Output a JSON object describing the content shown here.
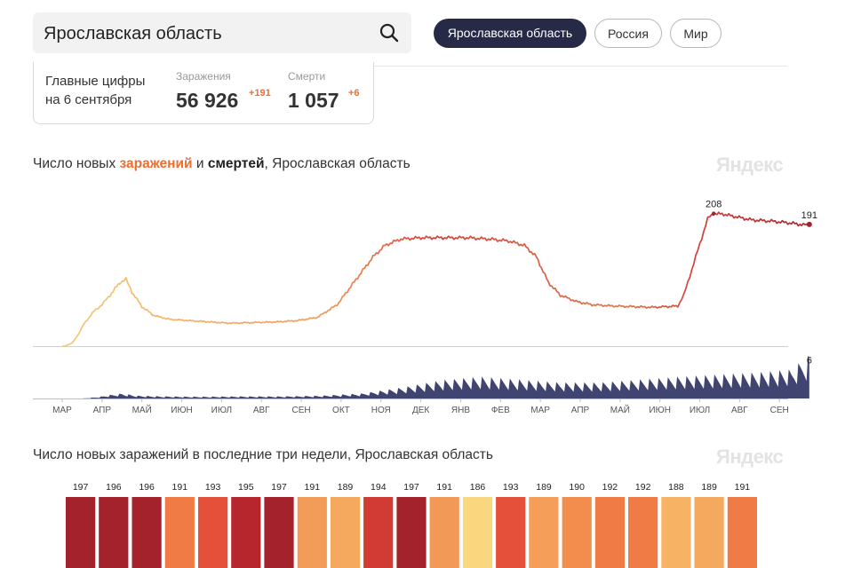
{
  "search": {
    "value": "Ярославская область"
  },
  "region_tabs": [
    "Ярославская область",
    "Россия",
    "Мир"
  ],
  "summary": {
    "line1": "Главные цифры",
    "line2": "на 6 сентября",
    "infections_label": "Заражения",
    "infections_value": "56 926",
    "infections_delta": "+191",
    "deaths_label": "Смерти",
    "deaths_value": "1 057",
    "deaths_delta": "+6"
  },
  "brand": "Яндекс",
  "chart_data": [
    {
      "type": "line",
      "title_parts": [
        "Число новых ",
        "заражений",
        " и ",
        "смертей",
        ", Ярославская область"
      ],
      "xlabel": "",
      "ylabel": "",
      "x_ticks": [
        "МАР",
        "АПР",
        "МАЙ",
        "ИЮН",
        "ИЮЛ",
        "АВГ",
        "СЕН",
        "ОКТ",
        "НОЯ",
        "ДЕК",
        "ЯНВ",
        "ФЕВ",
        "МАР",
        "АПР",
        "МАЙ",
        "ИЮН",
        "ИЮЛ",
        "АВГ",
        "СЕН"
      ],
      "annotations": [
        {
          "label": "208",
          "value": 208
        },
        {
          "label": "191",
          "value": 191
        },
        {
          "label": "6",
          "value": 6
        }
      ],
      "infections": {
        "ylim": [
          0,
          220
        ],
        "points": [
          [
            0,
            0
          ],
          [
            0.07,
            0
          ],
          [
            0.15,
            2
          ],
          [
            0.25,
            5
          ],
          [
            0.4,
            18
          ],
          [
            0.55,
            35
          ],
          [
            0.8,
            55
          ],
          [
            1.0,
            65
          ],
          [
            1.2,
            80
          ],
          [
            1.45,
            100
          ],
          [
            1.6,
            105
          ],
          [
            1.75,
            85
          ],
          [
            2.0,
            62
          ],
          [
            2.3,
            48
          ],
          [
            2.7,
            42
          ],
          [
            3.2,
            40
          ],
          [
            3.7,
            38
          ],
          [
            4.2,
            36
          ],
          [
            4.8,
            37
          ],
          [
            5.4,
            38
          ],
          [
            5.9,
            40
          ],
          [
            6.4,
            45
          ],
          [
            6.9,
            65
          ],
          [
            7.2,
            90
          ],
          [
            7.5,
            115
          ],
          [
            7.8,
            140
          ],
          [
            8.1,
            158
          ],
          [
            8.5,
            168
          ],
          [
            9.0,
            170
          ],
          [
            9.6,
            170
          ],
          [
            10.2,
            170
          ],
          [
            10.7,
            168
          ],
          [
            11.2,
            165
          ],
          [
            11.6,
            158
          ],
          [
            11.9,
            140
          ],
          [
            12.2,
            100
          ],
          [
            12.5,
            80
          ],
          [
            12.9,
            70
          ],
          [
            13.3,
            65
          ],
          [
            13.8,
            63
          ],
          [
            14.3,
            62
          ],
          [
            14.8,
            61
          ],
          [
            15.2,
            62
          ],
          [
            15.45,
            63
          ],
          [
            15.6,
            80
          ],
          [
            15.8,
            120
          ],
          [
            16.0,
            160
          ],
          [
            16.2,
            200
          ],
          [
            16.35,
            208
          ],
          [
            16.6,
            207
          ],
          [
            16.9,
            203
          ],
          [
            17.3,
            198
          ],
          [
            17.8,
            196
          ],
          [
            18.3,
            193
          ],
          [
            18.6,
            190
          ],
          [
            18.75,
            191
          ]
        ]
      },
      "deaths": {
        "ylim": [
          0,
          7
        ],
        "points": [
          [
            0,
            0
          ],
          [
            0.5,
            0
          ],
          [
            0.9,
            0.2
          ],
          [
            1.2,
            0.5
          ],
          [
            1.5,
            0.7
          ],
          [
            1.9,
            0.4
          ],
          [
            2.5,
            0.3
          ],
          [
            3.5,
            0.25
          ],
          [
            4.5,
            0.3
          ],
          [
            5.5,
            0.3
          ],
          [
            6.5,
            0.4
          ],
          [
            7.5,
            0.7
          ],
          [
            8.5,
            1.5
          ],
          [
            9.5,
            2.5
          ],
          [
            10.5,
            3.0
          ],
          [
            11.5,
            2.6
          ],
          [
            12.5,
            2.2
          ],
          [
            13.5,
            2.2
          ],
          [
            14.5,
            2.6
          ],
          [
            15.5,
            3.0
          ],
          [
            16.5,
            3.3
          ],
          [
            17.5,
            3.6
          ],
          [
            18.3,
            4.0
          ],
          [
            18.75,
            6
          ]
        ]
      }
    },
    {
      "type": "bar",
      "title": "Число новых заражений в последние три недели, Ярославская область",
      "values": [
        197,
        196,
        196,
        191,
        193,
        195,
        197,
        191,
        189,
        194,
        197,
        191,
        186,
        193,
        189,
        190,
        192,
        192,
        188,
        189,
        191
      ]
    }
  ],
  "colors": {
    "accent": "#f06d32",
    "deaths_fill": "#3f4570",
    "active_tab": "#262a46",
    "bars": [
      "#a3222c",
      "#a3222c",
      "#a3222c",
      "#f07b45",
      "#e5503a",
      "#b8262d",
      "#a3222c",
      "#f39b59",
      "#f5a95f",
      "#d23b33",
      "#a3222c",
      "#f29957",
      "#f8d77f",
      "#e5503a",
      "#f59e5a",
      "#f28d4e",
      "#f07b45",
      "#f07b45",
      "#f7b363",
      "#f5a95f",
      "#f07b45"
    ]
  }
}
